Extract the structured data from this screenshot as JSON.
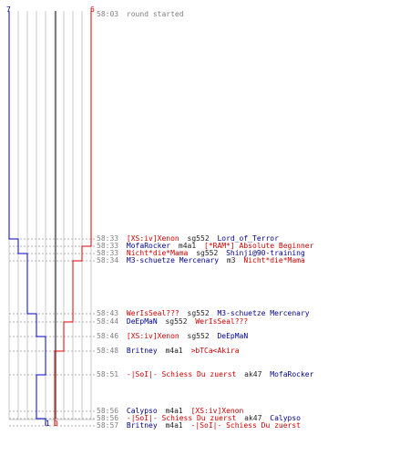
{
  "colors": {
    "t_team": "#e00000",
    "ct_team": "#0000cc",
    "t_text": "#cc0000",
    "ct_text": "#00008b",
    "grid": "#c8c8c8",
    "center_line": "#808080",
    "timestamp": "#808080"
  },
  "counts": {
    "ct_top": "7",
    "t_top": "6",
    "ct_bottom": "1",
    "t_bottom": "0"
  },
  "events": [
    {
      "time": "58:03",
      "message": "round started"
    },
    {
      "time": "58:33",
      "killer": "[XS:iv]Xenon",
      "killer_team": "t",
      "weapon": "sg552",
      "victim": "Lord_of_Terror",
      "victim_team": "ct"
    },
    {
      "time": "58:33",
      "killer": "MofaRocker",
      "killer_team": "ct",
      "weapon": "m4a1",
      "victim": "[*RAM*] Absolute Beginner",
      "victim_team": "t"
    },
    {
      "time": "58:33",
      "killer": "Nicht*die*Mama",
      "killer_team": "t",
      "weapon": "sg552",
      "victim": "Shinji@90-training",
      "victim_team": "ct"
    },
    {
      "time": "58:34",
      "killer": "M3-schuetze Mercenary",
      "killer_team": "ct",
      "weapon": "m3",
      "victim": "Nicht*die*Mama",
      "victim_team": "t"
    },
    {
      "time": "58:43",
      "killer": "WerIsSeal???",
      "killer_team": "t",
      "weapon": "sg552",
      "victim": "M3-schuetze Mercenary",
      "victim_team": "ct"
    },
    {
      "time": "58:44",
      "killer": "DeEpMaN",
      "killer_team": "ct",
      "weapon": "sg552",
      "victim": "WerIsSeal???",
      "victim_team": "t"
    },
    {
      "time": "58:46",
      "killer": "[XS:iv]Xenon",
      "killer_team": "t",
      "weapon": "sg552",
      "victim": "DeEpMaN",
      "victim_team": "ct"
    },
    {
      "time": "58:48",
      "killer": "Britney",
      "killer_team": "ct",
      "weapon": "m4a1",
      "victim": ">bTCa<Akira",
      "victim_team": "t"
    },
    {
      "time": "58:51",
      "killer": "-|SoI|- Schiess Du zuerst",
      "killer_team": "t",
      "weapon": "ak47",
      "victim": "MofaRocker",
      "victim_team": "ct"
    },
    {
      "time": "58:56",
      "killer": "Calypso",
      "killer_team": "ct",
      "weapon": "m4a1",
      "victim": "[XS:iv]Xenon",
      "victim_team": "t"
    },
    {
      "time": "58:56",
      "killer": "-|SoI|- Schiess Du zuerst",
      "killer_team": "t",
      "weapon": "ak47",
      "victim": "Calypso",
      "victim_team": "ct"
    },
    {
      "time": "58:57",
      "killer": "Britney",
      "killer_team": "ct",
      "weapon": "m4a1",
      "victim": "-|SoI|- Schiess Du zuerst",
      "victim_team": "t"
    }
  ]
}
